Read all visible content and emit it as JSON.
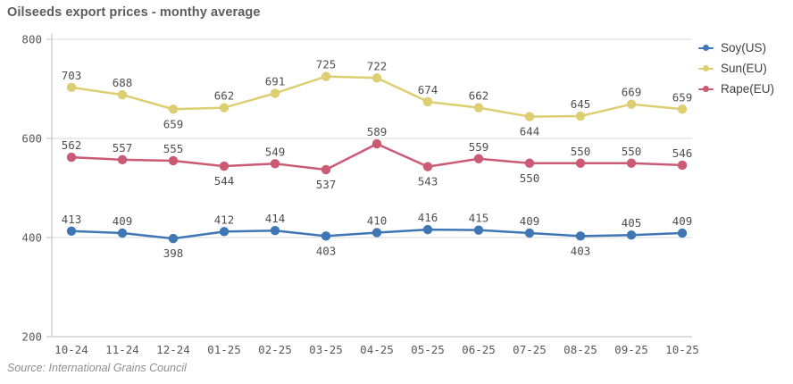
{
  "title": "Oilseeds export prices - monthy average",
  "source_note": "Source: International Grains Council",
  "chart_data": {
    "type": "line",
    "title": "Oilseeds export prices - monthy average",
    "xlabel": "",
    "ylabel": "",
    "categories": [
      "10-24",
      "11-24",
      "12-24",
      "01-25",
      "02-25",
      "03-25",
      "04-25",
      "05-25",
      "06-25",
      "07-25",
      "08-25",
      "09-25",
      "10-25"
    ],
    "series": [
      {
        "name": "Soy(US)",
        "color": "#3f76b4",
        "values": [
          413,
          409,
          398,
          412,
          414,
          403,
          410,
          416,
          415,
          409,
          403,
          405,
          409
        ],
        "label_below_indices": [
          2,
          5,
          10
        ]
      },
      {
        "name": "Sun(EU)",
        "color": "#ddce71",
        "values": [
          703,
          688,
          659,
          662,
          691,
          725,
          722,
          674,
          662,
          644,
          645,
          669,
          659
        ],
        "label_below_indices": [
          2,
          9
        ]
      },
      {
        "name": "Rape(EU)",
        "color": "#cb5a75",
        "values": [
          562,
          557,
          555,
          544,
          549,
          537,
          589,
          543,
          559,
          550,
          550,
          550,
          546
        ],
        "label_below_indices": [
          3,
          5,
          7,
          9
        ]
      }
    ],
    "y_ticks": [
      200,
      400,
      600,
      800
    ],
    "ylim": [
      200,
      800
    ],
    "grid": true,
    "point_labels": true,
    "legend_position": "right",
    "colors": {
      "gridline": "#d9d9d9",
      "axis": "#bdbdbd",
      "tick_text": "#595959",
      "data_label_text": "#4f4f4f"
    }
  }
}
